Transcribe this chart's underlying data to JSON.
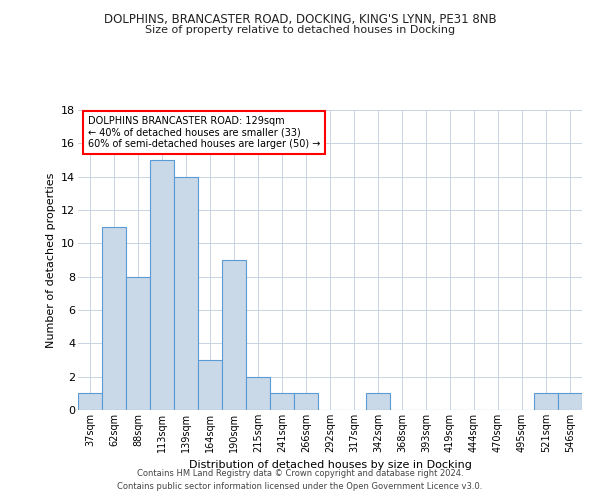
{
  "title": "DOLPHINS, BRANCASTER ROAD, DOCKING, KING'S LYNN, PE31 8NB",
  "subtitle": "Size of property relative to detached houses in Docking",
  "xlabel": "Distribution of detached houses by size in Docking",
  "ylabel": "Number of detached properties",
  "bar_color": "#c9d9e8",
  "bar_edge_color": "#5b9bd5",
  "categories": [
    "37sqm",
    "62sqm",
    "88sqm",
    "113sqm",
    "139sqm",
    "164sqm",
    "190sqm",
    "215sqm",
    "241sqm",
    "266sqm",
    "292sqm",
    "317sqm",
    "342sqm",
    "368sqm",
    "393sqm",
    "419sqm",
    "444sqm",
    "470sqm",
    "495sqm",
    "521sqm",
    "546sqm"
  ],
  "values": [
    1,
    11,
    8,
    15,
    14,
    3,
    9,
    2,
    1,
    1,
    0,
    0,
    1,
    0,
    0,
    0,
    0,
    0,
    0,
    1,
    1
  ],
  "ylim": [
    0,
    18
  ],
  "yticks": [
    0,
    2,
    4,
    6,
    8,
    10,
    12,
    14,
    16,
    18
  ],
  "annotation_title": "DOLPHINS BRANCASTER ROAD: 129sqm",
  "annotation_line1": "← 40% of detached houses are smaller (33)",
  "annotation_line2": "60% of semi-detached houses are larger (50) →",
  "background_color": "#ffffff",
  "grid_color": "#c8d4e3",
  "footer_line1": "Contains HM Land Registry data © Crown copyright and database right 2024.",
  "footer_line2": "Contains public sector information licensed under the Open Government Licence v3.0."
}
